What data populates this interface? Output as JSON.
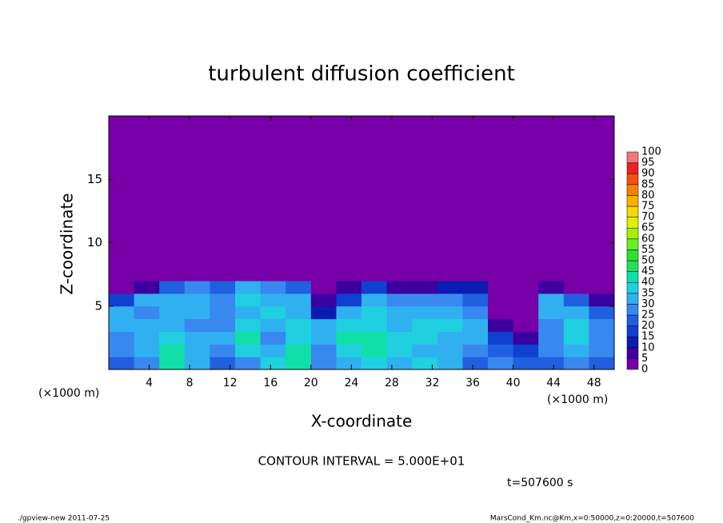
{
  "chart_data": {
    "type": "heatmap",
    "title": "turbulent diffusion coefficient",
    "xlabel": "X-coordinate",
    "ylabel": "Z-coordinate",
    "x_unit": "(×1000 m)",
    "xlim": [
      0,
      50
    ],
    "ylim": [
      0,
      20
    ],
    "xticks": [
      4,
      8,
      12,
      16,
      20,
      24,
      28,
      32,
      36,
      40,
      44,
      48
    ],
    "yticks": [
      5,
      10,
      15
    ],
    "x_edges": [
      0,
      2.5,
      5,
      7.5,
      10,
      12.5,
      15,
      17.5,
      20,
      22.5,
      25,
      27.5,
      30,
      32.5,
      35,
      37.5,
      40,
      42.5,
      45,
      47.5,
      50
    ],
    "z_edges": [
      0,
      1,
      2,
      3,
      4,
      5,
      6,
      7,
      20
    ],
    "values": [
      [
        20,
        25,
        40,
        30,
        20,
        25,
        35,
        40,
        25,
        30,
        35,
        30,
        35,
        30,
        20,
        25,
        20,
        20,
        25,
        20
      ],
      [
        25,
        30,
        40,
        30,
        25,
        35,
        30,
        40,
        25,
        35,
        40,
        35,
        30,
        30,
        25,
        20,
        15,
        25,
        30,
        25
      ],
      [
        25,
        30,
        35,
        30,
        30,
        40,
        25,
        35,
        30,
        40,
        40,
        35,
        35,
        30,
        30,
        15,
        5,
        25,
        35,
        25
      ],
      [
        30,
        30,
        30,
        25,
        25,
        35,
        30,
        35,
        30,
        35,
        35,
        30,
        35,
        35,
        30,
        5,
        0,
        25,
        35,
        25
      ],
      [
        30,
        25,
        30,
        30,
        25,
        30,
        35,
        30,
        10,
        30,
        35,
        30,
        30,
        30,
        25,
        0,
        0,
        30,
        30,
        20
      ],
      [
        15,
        30,
        30,
        30,
        25,
        35,
        30,
        30,
        5,
        15,
        30,
        25,
        25,
        25,
        20,
        0,
        0,
        30,
        20,
        5
      ],
      [
        0,
        5,
        20,
        25,
        20,
        30,
        25,
        20,
        0,
        5,
        15,
        5,
        5,
        10,
        10,
        0,
        0,
        5,
        0,
        0
      ],
      [
        0,
        0,
        0,
        0,
        0,
        0,
        0,
        0,
        0,
        0,
        0,
        0,
        0,
        0,
        0,
        0,
        0,
        0,
        0,
        0
      ]
    ],
    "colorbar": {
      "levels": [
        0,
        5,
        10,
        15,
        20,
        25,
        30,
        35,
        40,
        45,
        50,
        55,
        60,
        65,
        70,
        75,
        80,
        85,
        90,
        95,
        100
      ],
      "colors": [
        "#7800a8",
        "#3c00a0",
        "#0c1cb0",
        "#1040d0",
        "#2060e0",
        "#3888f0",
        "#30b0f0",
        "#20d0e0",
        "#10e0a8",
        "#20e060",
        "#30e030",
        "#68f020",
        "#a8f000",
        "#e0f000",
        "#f8d800",
        "#f8b000",
        "#f88000",
        "#f85010",
        "#f02020",
        "#f07878"
      ]
    },
    "contour_interval": "CONTOUR INTERVAL = 5.000E+01",
    "time": "t=507600 s",
    "footer_left": "./gpview-new  2011-07-25",
    "footer_right": "MarsCond_Km.nc@Km,x=0:50000,z=0:20000,t=507600"
  }
}
